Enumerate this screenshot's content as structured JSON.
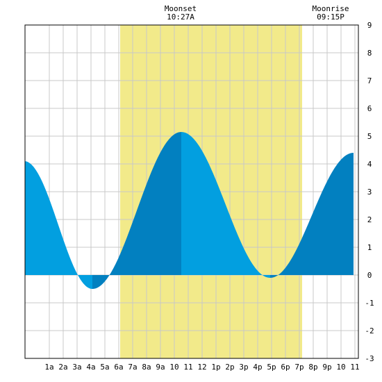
{
  "chart_data": {
    "type": "area",
    "title": "",
    "xlabel": "",
    "ylabel": "",
    "x_range_hours": [
      -0.75,
      23.25
    ],
    "ylim": [
      -3,
      9
    ],
    "y_ticks": [
      -3,
      -2,
      -1,
      0,
      1,
      2,
      3,
      4,
      5,
      6,
      7,
      8,
      9
    ],
    "x_ticks": [
      {
        "hour": 1,
        "label": "1a"
      },
      {
        "hour": 2,
        "label": "2a"
      },
      {
        "hour": 3,
        "label": "3a"
      },
      {
        "hour": 4,
        "label": "4a"
      },
      {
        "hour": 5,
        "label": "5a"
      },
      {
        "hour": 6,
        "label": "6a"
      },
      {
        "hour": 7,
        "label": "7a"
      },
      {
        "hour": 8,
        "label": "8a"
      },
      {
        "hour": 9,
        "label": "9a"
      },
      {
        "hour": 10,
        "label": "10"
      },
      {
        "hour": 11,
        "label": "11"
      },
      {
        "hour": 12,
        "label": "12"
      },
      {
        "hour": 13,
        "label": "1p"
      },
      {
        "hour": 14,
        "label": "2p"
      },
      {
        "hour": 15,
        "label": "3p"
      },
      {
        "hour": 16,
        "label": "4p"
      },
      {
        "hour": 17,
        "label": "5p"
      },
      {
        "hour": 18,
        "label": "6p"
      },
      {
        "hour": 19,
        "label": "7p"
      },
      {
        "hour": 20,
        "label": "8p"
      },
      {
        "hour": 21,
        "label": "9p"
      },
      {
        "hour": 22,
        "label": "10"
      },
      {
        "hour": 23,
        "label": "11"
      }
    ],
    "daylight": {
      "start_hour": 6.1,
      "end_hour": 19.2,
      "color": "#f2ea8a"
    },
    "moon_events": [
      {
        "name": "Moonset",
        "time": "10:27A",
        "hour": 10.45
      },
      {
        "name": "Moonrise",
        "time": "09:15P",
        "hour": 21.25
      }
    ],
    "tide_extremes": [
      {
        "hour": -0.8,
        "height": 4.1,
        "type": "high"
      },
      {
        "hour": 4.1,
        "height": -0.5,
        "type": "low"
      },
      {
        "hour": 10.5,
        "height": 5.15,
        "type": "high"
      },
      {
        "hour": 16.9,
        "height": -0.1,
        "type": "low"
      },
      {
        "hour": 22.9,
        "height": 4.4,
        "type": "high"
      }
    ],
    "colors": {
      "rising": "#0280c0",
      "falling": "#029fe0",
      "grid": "#c8c8c8",
      "plot_bg": "#ffffff"
    },
    "grid": true
  }
}
